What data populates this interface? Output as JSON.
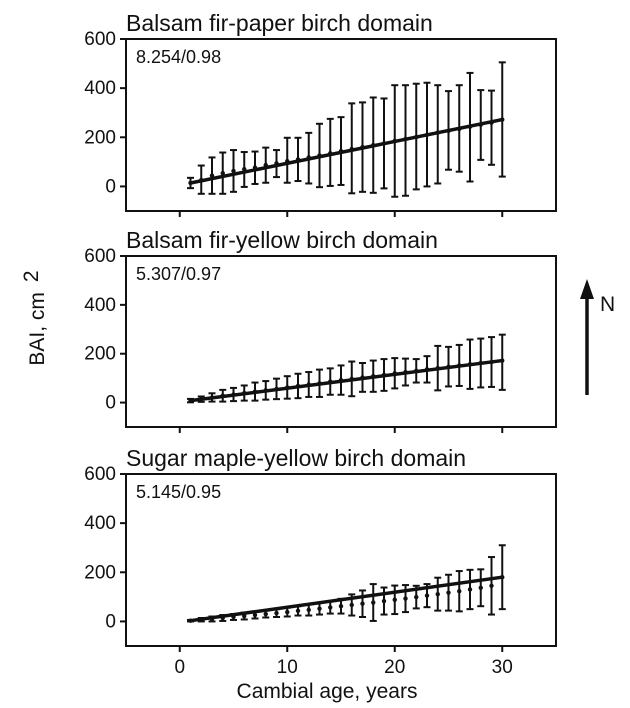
{
  "figure": {
    "ylabel": "BAI, cm",
    "ylabel_superscript": "2",
    "xlabel": "Cambial age, years",
    "arrow_label": "N",
    "xlim": [
      -5,
      35
    ],
    "xticks": [
      0,
      10,
      20,
      30
    ],
    "xtick_labels": [
      "0",
      "10",
      "20",
      "30"
    ]
  },
  "chart_data": [
    {
      "type": "line",
      "title": "Balsam fir-paper birch domain",
      "annotation": "8.254/0.98",
      "ylim": [
        -100,
        600
      ],
      "yticks": [
        0,
        200,
        400,
        600
      ],
      "ytick_labels": [
        "0",
        "200",
        "400",
        "600"
      ],
      "x": [
        1,
        2,
        3,
        4,
        5,
        6,
        7,
        8,
        9,
        10,
        11,
        12,
        13,
        14,
        15,
        16,
        17,
        18,
        19,
        20,
        21,
        22,
        23,
        24,
        25,
        26,
        27,
        28,
        29,
        30
      ],
      "mean": [
        14,
        26,
        44,
        54,
        63,
        70,
        77,
        87,
        94,
        103,
        110,
        118,
        126,
        135,
        144,
        152,
        160,
        168,
        175,
        185,
        193,
        201,
        210,
        219,
        226,
        234,
        243,
        251,
        259,
        272
      ],
      "upper": [
        35,
        85,
        118,
        138,
        148,
        140,
        142,
        158,
        148,
        198,
        198,
        218,
        255,
        275,
        282,
        338,
        342,
        362,
        358,
        412,
        412,
        418,
        422,
        412,
        388,
        412,
        462,
        392,
        390,
        505
      ],
      "lower": [
        -7,
        -30,
        -30,
        -30,
        -22,
        -2,
        10,
        15,
        38,
        15,
        22,
        12,
        -3,
        2,
        6,
        -28,
        -22,
        -26,
        -8,
        -42,
        -38,
        -12,
        0,
        12,
        68,
        60,
        20,
        108,
        88,
        40
      ]
    },
    {
      "type": "line",
      "title": "Balsam fir-yellow birch domain",
      "annotation": "5.307/0.97",
      "ylim": [
        -100,
        600
      ],
      "yticks": [
        0,
        200,
        400,
        600
      ],
      "ytick_labels": [
        "0",
        "200",
        "400",
        "600"
      ],
      "x": [
        1,
        2,
        3,
        4,
        5,
        6,
        7,
        8,
        9,
        10,
        11,
        12,
        13,
        14,
        15,
        16,
        17,
        18,
        19,
        20,
        21,
        22,
        23,
        24,
        25,
        26,
        27,
        28,
        29,
        30
      ],
      "mean": [
        8,
        14,
        21,
        28,
        33,
        39,
        45,
        50,
        56,
        62,
        68,
        74,
        79,
        86,
        92,
        97,
        103,
        108,
        113,
        120,
        125,
        130,
        136,
        141,
        147,
        152,
        157,
        162,
        166,
        172
      ],
      "upper": [
        15,
        25,
        38,
        52,
        60,
        70,
        82,
        88,
        98,
        108,
        118,
        125,
        135,
        140,
        152,
        168,
        162,
        172,
        178,
        182,
        180,
        178,
        190,
        232,
        228,
        236,
        258,
        262,
        268,
        278
      ],
      "lower": [
        1,
        3,
        4,
        4,
        6,
        8,
        8,
        12,
        14,
        16,
        18,
        23,
        23,
        32,
        32,
        26,
        44,
        44,
        48,
        58,
        70,
        82,
        82,
        50,
        66,
        68,
        56,
        62,
        64,
        52
      ]
    },
    {
      "type": "line",
      "title": "Sugar maple-yellow birch domain",
      "annotation": "5.145/0.95",
      "ylim": [
        -100,
        600
      ],
      "yticks": [
        0,
        200,
        400,
        600
      ],
      "ytick_labels": [
        "0",
        "200",
        "400",
        "600"
      ],
      "x": [
        1,
        2,
        3,
        4,
        5,
        6,
        7,
        8,
        9,
        10,
        11,
        12,
        13,
        14,
        15,
        16,
        17,
        18,
        19,
        20,
        21,
        22,
        23,
        24,
        25,
        26,
        27,
        28,
        29,
        30
      ],
      "mean": [
        3,
        7,
        10,
        14,
        18,
        22,
        26,
        30,
        34,
        38,
        43,
        47,
        52,
        57,
        62,
        67,
        72,
        77,
        83,
        88,
        93,
        99,
        105,
        111,
        117,
        123,
        130,
        137,
        145,
        180
      ],
      "upper": [
        6,
        14,
        20,
        26,
        30,
        36,
        40,
        44,
        50,
        56,
        62,
        70,
        76,
        82,
        92,
        110,
        126,
        152,
        138,
        146,
        148,
        145,
        152,
        178,
        190,
        205,
        210,
        212,
        262,
        310
      ],
      "lower": [
        0,
        0,
        0,
        2,
        6,
        8,
        12,
        16,
        18,
        20,
        24,
        24,
        28,
        32,
        32,
        24,
        18,
        2,
        28,
        30,
        38,
        53,
        58,
        44,
        44,
        41,
        50,
        62,
        28,
        50
      ]
    }
  ]
}
